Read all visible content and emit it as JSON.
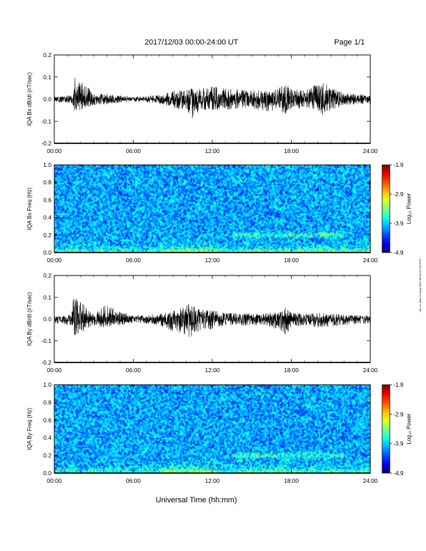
{
  "header": {
    "date_range": "2017/12/03  00:00-24:00 UT",
    "page": "Page 1/1"
  },
  "footer": {
    "xlabel": "Universal Time (hh:mm)",
    "stamp": "rel=+1 Wed 22 Aug 2023 08:30:20 PM PST"
  },
  "chart_data": [
    {
      "type": "line",
      "title": "",
      "ylabel": "IQA Bx dB/dt (nT/sec)",
      "xlabel": "",
      "x_ticks": [
        "00:00",
        "06:00",
        "12:00",
        "18:00",
        "24:00"
      ],
      "xlim": [
        0,
        24
      ],
      "ylim": [
        -0.2,
        0.2
      ],
      "y_ticks": [
        "0.2",
        "0.1",
        "0.0",
        "-0.1",
        "-0.2"
      ],
      "series": [
        {
          "values_hours": [
            0,
            1.4,
            1.5,
            3,
            6,
            8,
            9,
            10,
            10.5,
            11,
            12,
            13,
            15,
            16,
            17,
            17.6,
            18,
            19,
            20,
            20.5,
            21,
            22,
            24
          ],
          "envelope_upper": [
            0.015,
            0.018,
            0.11,
            0.03,
            0.01,
            0.02,
            0.04,
            0.04,
            0.05,
            0.045,
            0.06,
            0.05,
            0.04,
            0.04,
            0.05,
            0.09,
            0.05,
            0.04,
            0.07,
            0.08,
            0.05,
            0.03,
            0.02
          ],
          "envelope_lower": [
            -0.015,
            -0.02,
            -0.06,
            -0.03,
            -0.01,
            -0.02,
            -0.04,
            -0.05,
            -0.09,
            -0.05,
            -0.05,
            -0.05,
            -0.04,
            -0.06,
            -0.05,
            -0.07,
            -0.05,
            -0.04,
            -0.06,
            -0.08,
            -0.05,
            -0.03,
            -0.02
          ]
        }
      ]
    },
    {
      "type": "heatmap",
      "title": "",
      "ylabel": "IQA Bx Freq (Hz)",
      "xlabel": "",
      "x_ticks": [
        "00:00",
        "06:00",
        "12:00",
        "18:00",
        "24:00"
      ],
      "xlim": [
        0,
        24
      ],
      "ylim": [
        0,
        1.0
      ],
      "y_ticks": [
        "1.0",
        "0.8",
        "0.6",
        "0.4",
        "0.2",
        "0.0"
      ],
      "colorbar": {
        "label": "Log₁₀ Power",
        "ticks": [
          "-1.9",
          "-2.9",
          "-3.9",
          "-4.9"
        ],
        "range": [
          -4.9,
          -1.9
        ]
      }
    },
    {
      "type": "line",
      "title": "",
      "ylabel": "IQA By dB/dt (nT/sec)",
      "xlabel": "",
      "x_ticks": [
        "00:00",
        "06:00",
        "12:00",
        "18:00",
        "24:00"
      ],
      "xlim": [
        0,
        24
      ],
      "ylim": [
        -0.2,
        0.2
      ],
      "y_ticks": [
        "0.2",
        "0.1",
        "0.0",
        "-0.1",
        "-0.2"
      ],
      "series": [
        {
          "values_hours": [
            0,
            1.3,
            1.4,
            3,
            3.8,
            6,
            8,
            9,
            10,
            10.3,
            11,
            12,
            13,
            15,
            16,
            17,
            17.5,
            18,
            19,
            20,
            22,
            24
          ],
          "envelope_upper": [
            0.01,
            0.02,
            0.12,
            0.02,
            0.065,
            0.015,
            0.025,
            0.04,
            0.06,
            0.075,
            0.045,
            0.04,
            0.03,
            0.025,
            0.025,
            0.03,
            0.06,
            0.03,
            0.025,
            0.03,
            0.02,
            0.015
          ],
          "envelope_lower": [
            -0.02,
            -0.03,
            -0.09,
            -0.03,
            -0.04,
            -0.02,
            -0.03,
            -0.06,
            -0.07,
            -0.09,
            -0.06,
            -0.05,
            -0.03,
            -0.03,
            -0.03,
            -0.05,
            -0.08,
            -0.04,
            -0.03,
            -0.04,
            -0.03,
            -0.02
          ]
        }
      ]
    },
    {
      "type": "heatmap",
      "title": "",
      "ylabel": "IQA By Freq (Hz)",
      "xlabel": "",
      "x_ticks": [
        "00:00",
        "06:00",
        "12:00",
        "18:00",
        "24:00"
      ],
      "xlim": [
        0,
        24
      ],
      "ylim": [
        0,
        1.0
      ],
      "y_ticks": [
        "1.0",
        "0.8",
        "0.6",
        "0.4",
        "0.2",
        "0.0"
      ],
      "colorbar": {
        "label": "Log₁₀ Power",
        "ticks": [
          "-1.9",
          "-2.9",
          "-3.9",
          "-4.9"
        ],
        "range": [
          -4.9,
          -1.9
        ]
      }
    }
  ],
  "colors": {
    "trace": "#000000",
    "background_spectrum": "#2bbde0",
    "noise_spectrum": "#1a3fd6",
    "lowfreq_spectrum": "#5ad05a",
    "hot_spectrum": "#f2d21c"
  }
}
